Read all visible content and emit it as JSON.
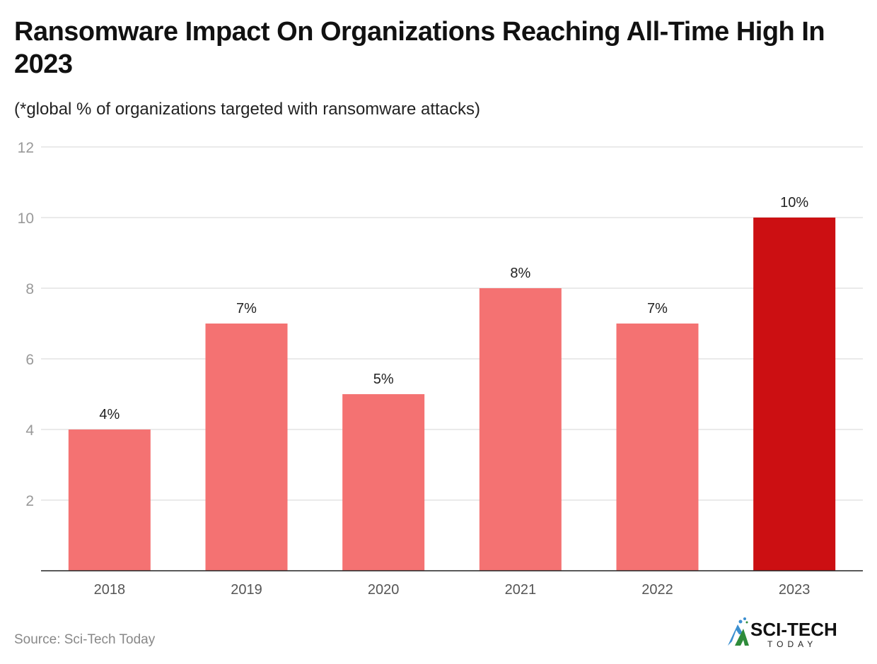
{
  "title": "Ransomware Impact On Organizations Reaching All-Time High In 2023",
  "subtitle": "(*global % of organizations targeted with ransomware attacks)",
  "source": "Source: Sci-Tech Today",
  "logo": {
    "text": "SCI-TECH",
    "subtext": "TODAY"
  },
  "chart_data": {
    "type": "bar",
    "categories": [
      "2018",
      "2019",
      "2020",
      "2021",
      "2022",
      "2023"
    ],
    "values": [
      4,
      7,
      5,
      8,
      7,
      10
    ],
    "data_labels": [
      "4%",
      "7%",
      "5%",
      "8%",
      "7%",
      "10%"
    ],
    "ylim": [
      0,
      12
    ],
    "yticks": [
      2,
      4,
      6,
      8,
      10,
      12
    ],
    "grid": true,
    "colors": {
      "default": "#f47272",
      "highlight": "#cc0f12"
    },
    "highlight_index": 5
  }
}
